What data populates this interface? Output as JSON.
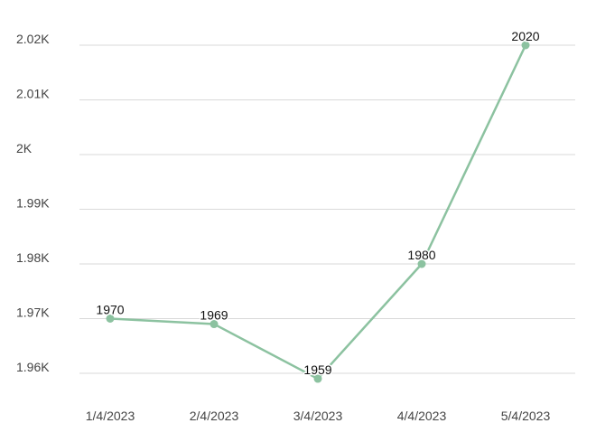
{
  "chart_data": {
    "type": "line",
    "title": "",
    "xlabel": "",
    "ylabel": "",
    "categories": [
      "1/4/2023",
      "2/4/2023",
      "3/4/2023",
      "4/4/2023",
      "5/4/2023"
    ],
    "series": [
      {
        "values": [
          1970,
          1969,
          1959,
          1980,
          2020
        ],
        "data_labels": [
          "1970",
          "1969",
          "1959",
          "1980",
          "2020"
        ],
        "color": "#8cc2a0"
      }
    ],
    "ylim": [
      1957,
      2022
    ],
    "y_ticks": [
      1960,
      1970,
      1980,
      1990,
      2000,
      2010,
      2020
    ],
    "y_tick_labels": [
      "1.96K",
      "1.97K",
      "1.98K",
      "1.99K",
      "2K",
      "2.01K",
      "2.02K"
    ],
    "grid": true,
    "legend": "none"
  },
  "colors": {
    "line": "#8cc2a0",
    "grid": "#d9d9d9",
    "tick_text": "#444444",
    "label_text": "#111111"
  }
}
